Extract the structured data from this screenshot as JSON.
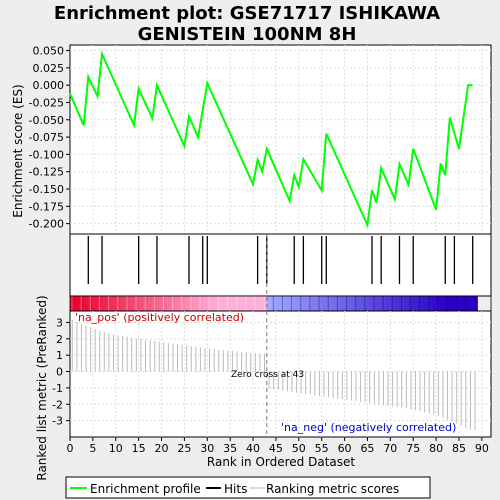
{
  "chart_data": {
    "type": "line",
    "title_line1": "Enrichment plot: GSE71717 ISHIKAWA",
    "title_line2": "GENISTEIN 100NM 8H",
    "es_panel": {
      "ylabel": "Enrichment score (ES)",
      "ylim": [
        -0.215,
        0.058
      ],
      "yticks": [
        "0.050",
        "0.025",
        "0.000",
        "-0.025",
        "-0.050",
        "-0.075",
        "-0.100",
        "-0.125",
        "-0.150",
        "-0.175",
        "-0.200"
      ],
      "ytick_values": [
        0.05,
        0.025,
        0,
        -0.025,
        -0.05,
        -0.075,
        -0.1,
        -0.125,
        -0.15,
        -0.175,
        -0.2
      ],
      "x": [
        0,
        3,
        4,
        6,
        7,
        14,
        15,
        18,
        19,
        25,
        26,
        28,
        30,
        40,
        41,
        42,
        43,
        48,
        49,
        50,
        51,
        55,
        56,
        65,
        66,
        67,
        68,
        71,
        72,
        74,
        75,
        80,
        81,
        82,
        83,
        85,
        87,
        88
      ],
      "y": [
        -0.012,
        -0.058,
        0.012,
        -0.016,
        0.045,
        -0.058,
        -0.005,
        -0.048,
        0.0,
        -0.088,
        -0.045,
        -0.075,
        0.003,
        -0.143,
        -0.108,
        -0.125,
        -0.092,
        -0.167,
        -0.13,
        -0.147,
        -0.107,
        -0.152,
        -0.07,
        -0.202,
        -0.152,
        -0.17,
        -0.12,
        -0.165,
        -0.114,
        -0.144,
        -0.092,
        -0.18,
        -0.113,
        -0.13,
        -0.047,
        -0.092,
        0.0,
        0.0
      ]
    },
    "hits": [
      4,
      7,
      15,
      19,
      26,
      29,
      30,
      41,
      43,
      49,
      51,
      55,
      56,
      66,
      68,
      72,
      75,
      82,
      84,
      88
    ],
    "xlim": [
      0,
      92
    ],
    "xticks": [
      0,
      5,
      10,
      15,
      20,
      25,
      30,
      35,
      40,
      45,
      50,
      55,
      60,
      65,
      70,
      75,
      80,
      85,
      90
    ],
    "xlabel": "Rank in Ordered Dataset",
    "rank_panel": {
      "ylabel": "Ranked list metric (PreRanked)",
      "ylim": [
        -4.0,
        3.7
      ],
      "yticks": [
        3,
        2,
        1,
        0,
        -1,
        -2,
        -3
      ],
      "pos_label": "'na_pos' (positively correlated)",
      "neg_label": "'na_neg' (negatively correlated)",
      "zero_cross_label": "Zero cross at 43",
      "zero_cross": 43,
      "metric": [
        3.15,
        3.0,
        2.88,
        2.8,
        2.7,
        2.6,
        2.5,
        2.42,
        2.35,
        2.28,
        2.22,
        2.17,
        2.12,
        2.08,
        2.03,
        1.99,
        1.95,
        1.91,
        1.87,
        1.83,
        1.79,
        1.75,
        1.71,
        1.67,
        1.63,
        1.59,
        1.55,
        1.51,
        1.47,
        1.43,
        1.4,
        1.37,
        1.34,
        1.31,
        1.28,
        1.25,
        1.22,
        1.2,
        1.18,
        1.16,
        1.14,
        1.12,
        1.1,
        -1.05,
        -1.09,
        -1.13,
        -1.17,
        -1.21,
        -1.25,
        -1.29,
        -1.33,
        -1.37,
        -1.41,
        -1.45,
        -1.49,
        -1.53,
        -1.57,
        -1.61,
        -1.65,
        -1.69,
        -1.73,
        -1.77,
        -1.81,
        -1.85,
        -1.89,
        -1.93,
        -1.97,
        -2.01,
        -2.05,
        -2.09,
        -2.13,
        -2.17,
        -2.21,
        -2.26,
        -2.31,
        -2.36,
        -2.42,
        -2.48,
        -2.55,
        -2.63,
        -2.72,
        -2.82,
        -2.93,
        -3.05,
        -3.18,
        -3.32,
        -3.45,
        -3.55,
        -3.6
      ]
    },
    "colors": {
      "es_line": "#00ff00",
      "hit_line": "#000000",
      "metric_line": "#bbbbbb",
      "pos_label": "#cc0000",
      "neg_label": "#0000cc",
      "zero_line": "#777777",
      "bar_pos_strong": "#e8002a",
      "bar_pos_weak": "#ffb0d8",
      "bar_neg_weak": "#a0a8ff",
      "bar_neg_strong": "#2a00c8"
    }
  },
  "legend": {
    "items": [
      {
        "label": "Enrichment profile",
        "kind": "es"
      },
      {
        "label": "Hits",
        "kind": "hit"
      },
      {
        "label": "Ranking metric scores",
        "kind": "metric"
      }
    ]
  }
}
